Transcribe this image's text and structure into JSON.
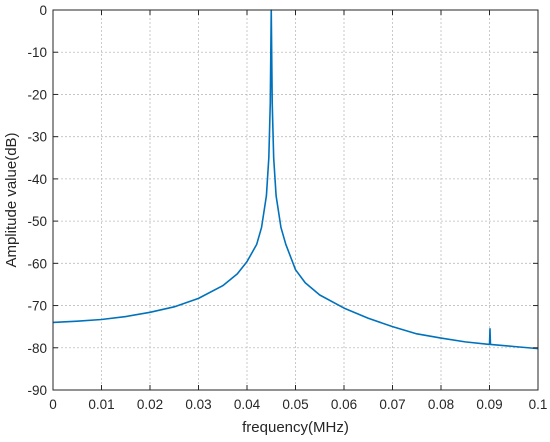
{
  "chart_data": {
    "type": "line",
    "title": "",
    "xlabel": "frequency(MHz)",
    "ylabel": "Amplitude value(dB)",
    "xlim": [
      0,
      0.1
    ],
    "ylim": [
      -90,
      0
    ],
    "x_ticks": [
      0,
      0.01,
      0.02,
      0.03,
      0.04,
      0.05,
      0.06,
      0.07,
      0.08,
      0.09,
      0.1
    ],
    "x_tick_labels": [
      "0",
      "0.01",
      "0.02",
      "0.03",
      "0.04",
      "0.05",
      "0.06",
      "0.07",
      "0.08",
      "0.09",
      "0.1"
    ],
    "y_ticks": [
      0,
      -10,
      -20,
      -30,
      -40,
      -50,
      -60,
      -70,
      -80,
      -90
    ],
    "y_tick_labels": [
      "0",
      "-10",
      "-20",
      "-30",
      "-40",
      "-50",
      "-60",
      "-70",
      "-80",
      "-90"
    ],
    "grid": true,
    "grid_style": "dotted",
    "legend": "none",
    "series": [
      {
        "color": "#0072bd",
        "x": [
          0,
          0.005,
          0.01,
          0.015,
          0.02,
          0.025,
          0.03,
          0.035,
          0.038,
          0.04,
          0.042,
          0.043,
          0.044,
          0.0445,
          0.0448,
          0.045,
          0.0452,
          0.0455,
          0.046,
          0.047,
          0.048,
          0.05,
          0.052,
          0.055,
          0.06,
          0.065,
          0.07,
          0.075,
          0.08,
          0.085,
          0.09,
          0.0901,
          0.0902,
          0.095,
          0.1
        ],
        "y": [
          -74,
          -73.7,
          -73.3,
          -72.6,
          -71.6,
          -70.3,
          -68.3,
          -65.3,
          -62.5,
          -59.6,
          -55.5,
          -51.5,
          -44,
          -35,
          -22,
          0,
          -22,
          -35,
          -44,
          -51.5,
          -55.5,
          -61.5,
          -64.6,
          -67.5,
          -70.6,
          -73,
          -75,
          -76.7,
          -77.7,
          -78.6,
          -79.2,
          -75.5,
          -79.2,
          -79.7,
          -80.2
        ]
      }
    ]
  }
}
